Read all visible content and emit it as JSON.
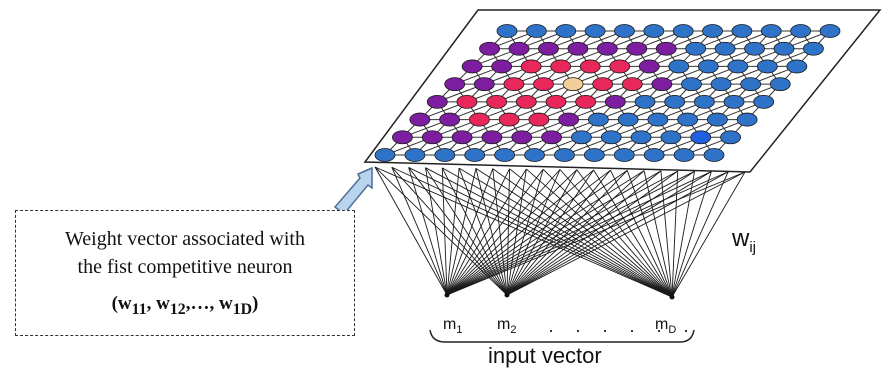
{
  "callout": {
    "line1": "Weight vector associated with",
    "line2": "the fist competitive neuron",
    "formula": {
      "open": "(w",
      "s1": "11",
      "sep1": ", w",
      "s2": "12",
      "sep2": ",…, w",
      "s3": "1D",
      "close": ")"
    }
  },
  "weight_label": {
    "base": "w",
    "sub": "ij"
  },
  "inputs": [
    {
      "base": "m",
      "sub": "1"
    },
    {
      "base": "m",
      "sub": "2"
    },
    {
      "base": "m",
      "sub": "D"
    }
  ],
  "dots": "· · · · · ·",
  "input_vector_label": "input vector",
  "colors": {
    "blue": "#2f73c8",
    "purple": "#7d1ea0",
    "red": "#e8275a",
    "winner": "#f2cf9a",
    "highlight_blue": "#1f5fe0",
    "arrow_fill": "#b9d4ec",
    "arrow_stroke": "#4d6f95"
  },
  "grid": {
    "cols": 12,
    "rows": 8,
    "colors": [
      [
        "blue",
        "blue",
        "blue",
        "blue",
        "blue",
        "blue",
        "blue",
        "blue",
        "blue",
        "blue",
        "blue",
        "blue"
      ],
      [
        "purple",
        "purple",
        "purple",
        "purple",
        "purple",
        "purple",
        "purple",
        "blue",
        "blue",
        "blue",
        "blue",
        "blue"
      ],
      [
        "purple",
        "purple",
        "red",
        "red",
        "red",
        "red",
        "purple",
        "blue",
        "blue",
        "blue",
        "blue",
        "blue"
      ],
      [
        "purple",
        "purple",
        "red",
        "red",
        "winner",
        "red",
        "red",
        "purple",
        "blue",
        "blue",
        "blue",
        "blue"
      ],
      [
        "purple",
        "red",
        "red",
        "red",
        "red",
        "red",
        "purple",
        "blue",
        "blue",
        "blue",
        "blue",
        "blue"
      ],
      [
        "purple",
        "purple",
        "red",
        "red",
        "red",
        "purple",
        "blue",
        "blue",
        "blue",
        "blue",
        "blue",
        "blue"
      ],
      [
        "purple",
        "purple",
        "purple",
        "purple",
        "purple",
        "purple",
        "blue",
        "blue",
        "blue",
        "blue",
        "highlight_blue",
        "blue"
      ],
      [
        "blue",
        "blue",
        "blue",
        "blue",
        "blue",
        "blue",
        "blue",
        "blue",
        "blue",
        "blue",
        "blue",
        "blue"
      ]
    ]
  }
}
